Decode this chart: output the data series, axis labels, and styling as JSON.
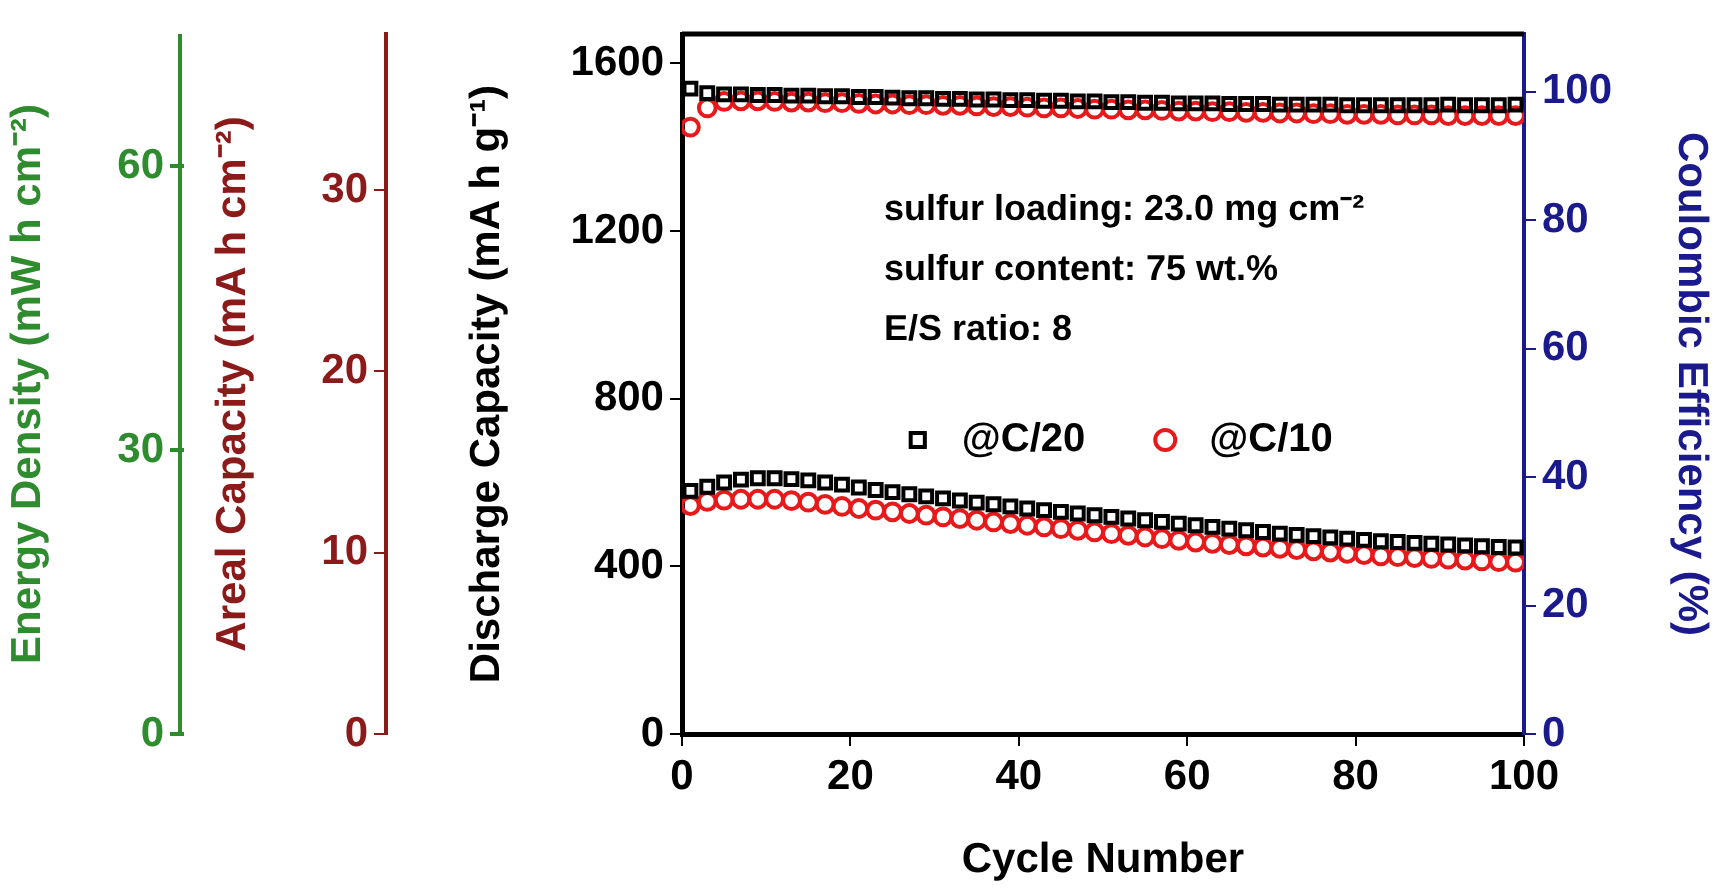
{
  "chart_data": [
    {
      "type": "scatter",
      "xlabel": "Cycle Number",
      "ylabel": "Discharge Capacity (mA h g⁻¹)",
      "y2label": "Coulombic Efficiency (%)",
      "y3label": "Areal Capacity (mA h cm⁻²)",
      "xlim": [
        0,
        100
      ],
      "xticks": [
        0,
        20,
        40,
        60,
        80,
        100
      ],
      "ylim": [
        0,
        1670
      ],
      "yticks": [
        0,
        400,
        800,
        1200,
        1600
      ],
      "y2lim": [
        0,
        109
      ],
      "y2ticks": [
        0,
        20,
        40,
        60,
        80,
        100
      ],
      "y3lim": [
        0,
        38.6
      ],
      "y3ticks": [
        0,
        10,
        20,
        30
      ],
      "x": [
        1,
        3,
        5,
        7,
        9,
        11,
        13,
        15,
        17,
        19,
        21,
        23,
        25,
        27,
        29,
        31,
        33,
        35,
        37,
        39,
        41,
        43,
        45,
        47,
        49,
        51,
        53,
        55,
        57,
        59,
        61,
        63,
        65,
        67,
        69,
        71,
        73,
        75,
        77,
        79,
        81,
        83,
        85,
        87,
        89,
        91,
        93,
        95,
        97,
        99
      ],
      "series": [
        {
          "name": "@C/20",
          "color": "#000000",
          "marker": "square",
          "axis": "y",
          "values": [
            580,
            590,
            600,
            607,
            610,
            610,
            608,
            605,
            600,
            595,
            588,
            582,
            577,
            572,
            567,
            562,
            557,
            552,
            548,
            543,
            538,
            534,
            530,
            526,
            522,
            518,
            514,
            510,
            506,
            502,
            498,
            494,
            490,
            486,
            482,
            478,
            475,
            472,
            469,
            466,
            463,
            460,
            458,
            456,
            454,
            452,
            450,
            448,
            446,
            445
          ]
        },
        {
          "name": "@C/10",
          "color": "#e8191b",
          "marker": "circle",
          "axis": "y",
          "values": [
            545,
            555,
            558,
            560,
            560,
            560,
            557,
            553,
            548,
            543,
            538,
            534,
            530,
            526,
            522,
            518,
            514,
            510,
            506,
            502,
            498,
            494,
            490,
            486,
            482,
            478,
            474,
            470,
            466,
            462,
            458,
            455,
            452,
            449,
            446,
            443,
            440,
            437,
            434,
            431,
            428,
            425,
            423,
            421,
            419,
            417,
            415,
            413,
            411,
            410
          ]
        },
        {
          "color": "#000000",
          "marker": "square",
          "axis": "y2",
          "values": [
            100.5,
            99.8,
            99.6,
            99.6,
            99.5,
            99.5,
            99.4,
            99.4,
            99.3,
            99.3,
            99.2,
            99.2,
            99.1,
            99.0,
            99.0,
            98.9,
            98.9,
            98.8,
            98.8,
            98.7,
            98.7,
            98.6,
            98.6,
            98.5,
            98.5,
            98.4,
            98.4,
            98.3,
            98.3,
            98.2,
            98.2,
            98.2,
            98.1,
            98.1,
            98.1,
            98.0,
            98.0,
            98.0,
            98.0,
            97.9,
            97.9,
            97.9,
            97.9,
            97.9,
            97.9,
            98.0,
            97.9,
            97.9,
            97.9,
            98.0
          ]
        },
        {
          "color": "#e8191b",
          "marker": "circle",
          "axis": "y2",
          "values": [
            94.5,
            97.5,
            98.5,
            98.6,
            98.6,
            98.5,
            98.4,
            98.4,
            98.3,
            98.3,
            98.2,
            98.1,
            98.1,
            98.0,
            98.0,
            97.9,
            97.9,
            97.8,
            97.7,
            97.7,
            97.6,
            97.5,
            97.5,
            97.4,
            97.3,
            97.3,
            97.2,
            97.2,
            97.1,
            97.0,
            97.0,
            96.9,
            96.9,
            96.8,
            96.8,
            96.7,
            96.7,
            96.6,
            96.6,
            96.5,
            96.5,
            96.5,
            96.4,
            96.4,
            96.4,
            96.3,
            96.3,
            96.3,
            96.3,
            96.3
          ]
        }
      ],
      "legend": "center",
      "annotations": [
        "sulfur loading: 23.0 mg cm⁻²",
        "sulfur content: 75 wt.%",
        "E/S ratio: 8"
      ]
    },
    {
      "type": "other",
      "ylabel": "Energy Density (mW h cm⁻²)",
      "annotations": [
        "60",
        "30",
        "0"
      ]
    }
  ]
}
